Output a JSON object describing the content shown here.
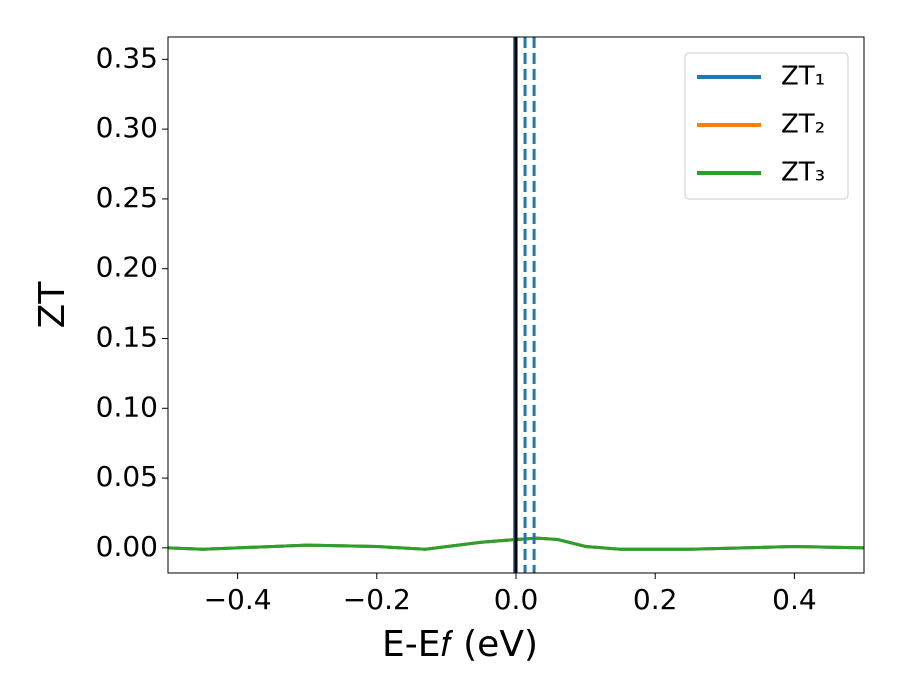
{
  "chart_data": {
    "type": "line",
    "xlabel": "E-E𝑓 (eV)",
    "ylabel": "ZT",
    "x": [
      -0.5,
      -0.45,
      -0.4,
      -0.3,
      -0.2,
      -0.13,
      -0.05,
      0.0,
      0.03,
      0.06,
      0.1,
      0.15,
      0.25,
      0.4,
      0.5
    ],
    "series": [
      {
        "name": "ZT₁",
        "color": "#1f77b4",
        "values": [
          0.0,
          -0.001,
          0.0,
          0.002,
          0.001,
          -0.001,
          0.004,
          0.006,
          0.007,
          0.006,
          0.001,
          -0.001,
          -0.001,
          0.001,
          0.0
        ]
      },
      {
        "name": "ZT₂",
        "color": "#ff7f0e",
        "values": [
          0.0,
          -0.001,
          0.0,
          0.002,
          0.001,
          -0.001,
          0.004,
          0.006,
          0.007,
          0.006,
          0.001,
          -0.001,
          -0.001,
          0.001,
          0.0
        ]
      },
      {
        "name": "ZT₃",
        "color": "#2ca02c",
        "values": [
          0.0,
          -0.001,
          0.0,
          0.002,
          0.001,
          -0.001,
          0.004,
          0.006,
          0.007,
          0.006,
          0.001,
          -0.001,
          -0.001,
          0.001,
          0.0
        ]
      }
    ],
    "vlines": [
      {
        "x": -0.002,
        "color": "#1f77b4",
        "dashed": false
      },
      {
        "x": 0.0,
        "color": "#000000",
        "dashed": false
      },
      {
        "x": 0.013,
        "color": "#1f77b4",
        "dashed": true
      },
      {
        "x": 0.026,
        "color": "#1f77b4",
        "dashed": true
      }
    ],
    "xlim": [
      -0.5,
      0.5
    ],
    "xticks": [
      {
        "value": -0.4,
        "label": "−0.4"
      },
      {
        "value": -0.2,
        "label": "−0.2"
      },
      {
        "value": 0.0,
        "label": "0.0"
      },
      {
        "value": 0.2,
        "label": "0.2"
      },
      {
        "value": 0.4,
        "label": "0.4"
      }
    ],
    "ylim": [
      -0.018,
      0.366
    ],
    "yticks": [
      {
        "value": 0.0,
        "label": "0.00"
      },
      {
        "value": 0.05,
        "label": "0.05"
      },
      {
        "value": 0.1,
        "label": "0.10"
      },
      {
        "value": 0.15,
        "label": "0.15"
      },
      {
        "value": 0.2,
        "label": "0.20"
      },
      {
        "value": 0.25,
        "label": "0.25"
      },
      {
        "value": 0.3,
        "label": "0.30"
      },
      {
        "value": 0.35,
        "label": "0.35"
      }
    ],
    "legend": "upper right",
    "grid": false
  }
}
